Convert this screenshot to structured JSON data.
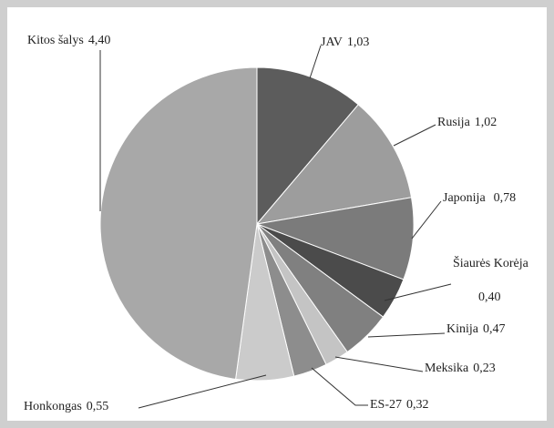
{
  "chart_data": {
    "type": "pie",
    "categories": [
      "JAV",
      "Rusija",
      "Japonija",
      "Šiaurės Korėja",
      "Kinija",
      "Meksika",
      "ES-27",
      "Honkongas",
      "Kitos šalys"
    ],
    "values": [
      1.03,
      1.02,
      0.78,
      0.4,
      0.47,
      0.23,
      0.32,
      0.55,
      4.4
    ],
    "value_labels": [
      "1,03",
      "1,02",
      "0,78",
      "0,40",
      "0,47",
      "0,23",
      "0,32",
      "0,55",
      "4,40"
    ],
    "colors": [
      "#5c5c5c",
      "#9d9d9d",
      "#7b7b7b",
      "#4b4b4b",
      "#808080",
      "#c4c4c4",
      "#8d8d8d",
      "#cbcbcb",
      "#a8a8a8"
    ]
  }
}
